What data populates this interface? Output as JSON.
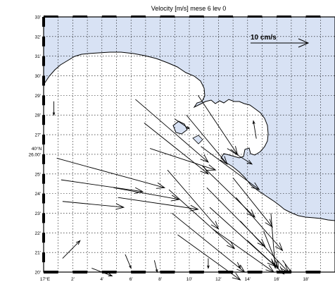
{
  "title": "Velocity [m/s] mese 6 lev 0",
  "scale_label": "10 cm/s",
  "colors": {
    "sea": "#d8e2f4",
    "land": "#ffffff",
    "arrow": "#000000",
    "grid": "#000000"
  },
  "axes": {
    "x_ticks": [
      "17°E",
      "2'",
      "4'",
      "6'",
      "8'",
      "10'",
      "12'",
      "14'",
      "16'",
      "18'"
    ],
    "y_ticks": [
      "33'",
      "32'",
      "31'",
      "30'",
      "29'",
      "28'",
      "27'",
      "26.00'",
      "25'",
      "24'",
      "23'",
      "22'",
      "21'",
      "20'"
    ],
    "lat_label": "40°N",
    "x_range_min": [
      0,
      20
    ],
    "y_range_min": [
      20,
      33
    ]
  },
  "vectors": [
    {
      "x": 0.7,
      "y": 28.7,
      "u": 0,
      "v": -0.7
    },
    {
      "x": 0.9,
      "y": 25.8,
      "u": 7.4,
      "v": -1.5
    },
    {
      "x": 1.2,
      "y": 24.7,
      "u": 5.6,
      "v": -0.6
    },
    {
      "x": 1.3,
      "y": 23.6,
      "u": 4.2,
      "v": -0.3
    },
    {
      "x": 1.3,
      "y": 20.7,
      "u": 1.2,
      "v": 0.9
    },
    {
      "x": 3.3,
      "y": 20.2,
      "u": 1.4,
      "v": -0.4
    },
    {
      "x": 6.3,
      "y": 28.8,
      "u": 5.0,
      "v": -3.2
    },
    {
      "x": 6.9,
      "y": 27.6,
      "u": 4.4,
      "v": -2.6
    },
    {
      "x": 7.3,
      "y": 26.3,
      "u": 4.5,
      "v": -1.1
    },
    {
      "x": 4.8,
      "y": 24.3,
      "u": 4.5,
      "v": -0.6
    },
    {
      "x": 5.1,
      "y": 23.8,
      "u": 5.5,
      "v": -0.6
    },
    {
      "x": 8.5,
      "y": 25.2,
      "u": 3.5,
      "v": -3.0
    },
    {
      "x": 8.6,
      "y": 24.2,
      "u": 4.5,
      "v": -3.0
    },
    {
      "x": 8.8,
      "y": 23.0,
      "u": 5.0,
      "v": -3.0
    },
    {
      "x": 9.2,
      "y": 21.9,
      "u": 4.3,
      "v": -2.3
    },
    {
      "x": 10.8,
      "y": 26.4,
      "u": 4.0,
      "v": -2.2
    },
    {
      "x": 10.9,
      "y": 25.4,
      "u": 3.6,
      "v": -2.6
    },
    {
      "x": 11.2,
      "y": 24.3,
      "u": 4.0,
      "v": -3.0
    },
    {
      "x": 11.4,
      "y": 23.3,
      "u": 4.5,
      "v": -3.0
    },
    {
      "x": 11.6,
      "y": 22.2,
      "u": 4.2,
      "v": -2.2
    },
    {
      "x": 12.6,
      "y": 26.3,
      "u": 1.7,
      "v": -0.8
    },
    {
      "x": 13.0,
      "y": 24.8,
      "u": 2.7,
      "v": -2.5
    },
    {
      "x": 13.2,
      "y": 23.8,
      "u": 3.2,
      "v": -2.7
    },
    {
      "x": 13.5,
      "y": 22.6,
      "u": 3.3,
      "v": -2.6
    },
    {
      "x": 14.0,
      "y": 21.6,
      "u": 2.5,
      "v": -1.7
    },
    {
      "x": 9.8,
      "y": 28.0,
      "u": 2.8,
      "v": -2.5
    },
    {
      "x": 10.6,
      "y": 29.0,
      "u": 2.7,
      "v": -3.0
    },
    {
      "x": 9.0,
      "y": 27.8,
      "u": 1.0,
      "v": -0.5
    },
    {
      "x": 15.1,
      "y": 22.1,
      "u": 1.0,
      "v": -1.9
    },
    {
      "x": 15.6,
      "y": 23.0,
      "u": 0.3,
      "v": -2.8
    },
    {
      "x": 16.4,
      "y": 20.6,
      "u": 0.6,
      "v": -0.6
    },
    {
      "x": 7.6,
      "y": 20.6,
      "u": 0.2,
      "v": -0.6
    },
    {
      "x": 11.3,
      "y": 20.7,
      "u": 0.0,
      "v": -0.5
    },
    {
      "x": 13.3,
      "y": 20.5,
      "u": 0.2,
      "v": -0.3
    },
    {
      "x": 5.6,
      "y": 20.9,
      "u": 0.4,
      "v": -0.7
    },
    {
      "x": 14.6,
      "y": 26.8,
      "u": -0.2,
      "v": 0.9
    }
  ]
}
